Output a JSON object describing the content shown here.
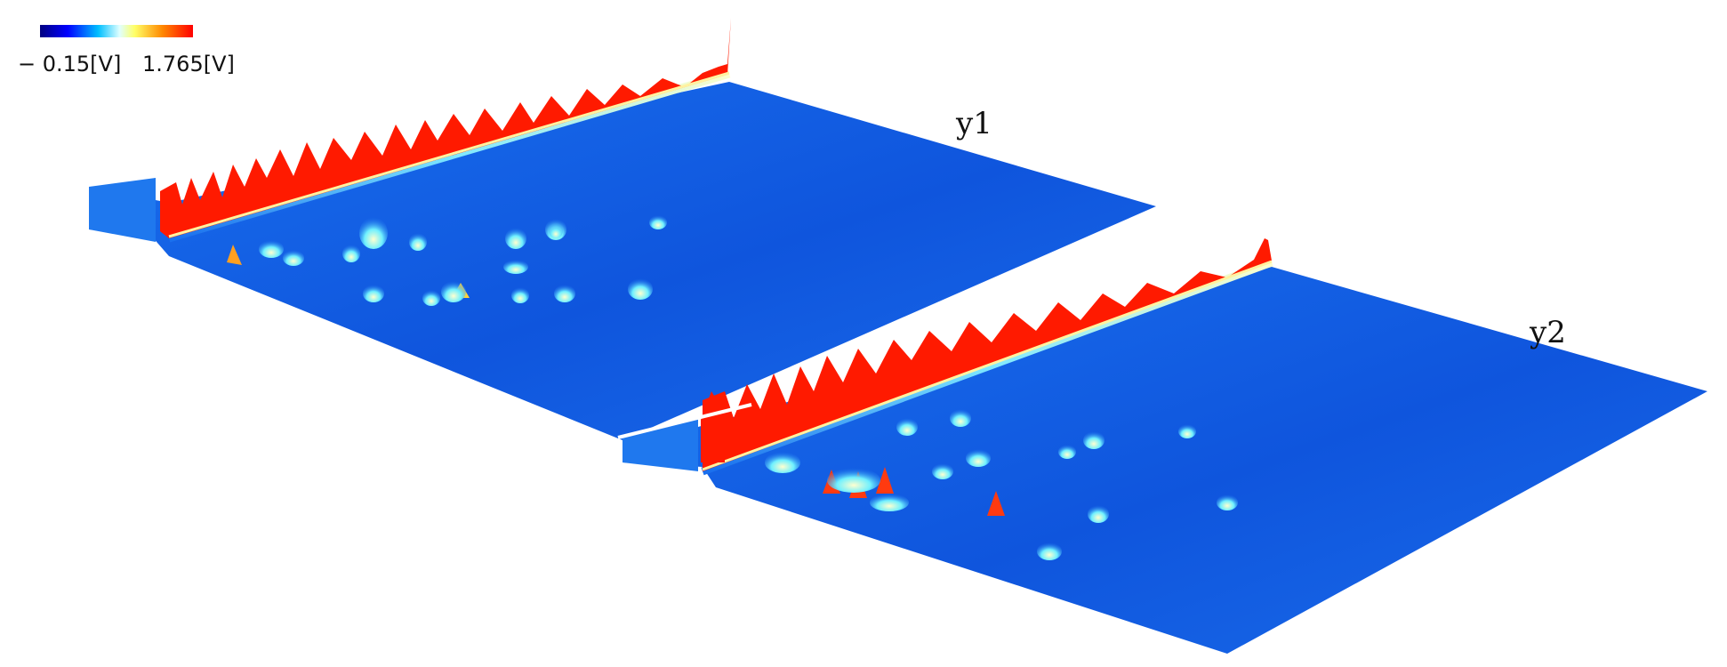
{
  "colorbar": {
    "min_label": "− 0.15[V]",
    "max_label": "1.765[V]",
    "min_value": -0.15,
    "max_value": 1.765,
    "stops": [
      "#000080",
      "#0000ff",
      "#00bfff",
      "#e0ffff",
      "#ffff66",
      "#ff8800",
      "#ff0000"
    ]
  },
  "chart_data": {
    "type": "heatmap",
    "kind": "3D surface (two-dimensional chromatogram)",
    "value_unit": "V",
    "zlim": [
      -0.15,
      1.765
    ],
    "panels": [
      {
        "label": "y1"
      },
      {
        "label": "y2"
      }
    ],
    "colors": {
      "background_level": "#1460e0",
      "ridge": "#ff1a00",
      "peak_low": "#5ee8ff",
      "peak_mid": "#ffffa0",
      "peak_high": "#ff1a00"
    }
  }
}
